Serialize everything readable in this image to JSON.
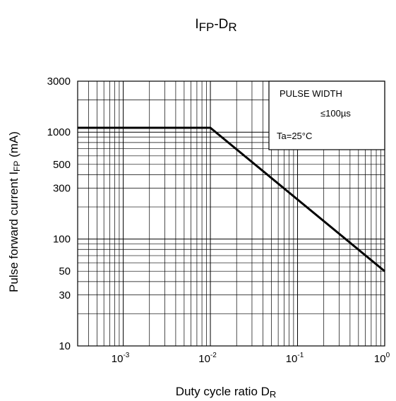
{
  "chart_data": {
    "type": "line",
    "title_parts": [
      {
        "text": "I",
        "sub": false
      },
      {
        "text": "FP",
        "sub": true
      },
      {
        "text": "-D",
        "sub": false
      },
      {
        "text": "R",
        "sub": true
      }
    ],
    "xlabel": {
      "main": "Duty cycle ratio   D",
      "sub": "R"
    },
    "ylabel": {
      "main": "Pulse forward current   I",
      "sub": "FP",
      "unit": "(mA)"
    },
    "x_scale": "log",
    "y_scale": "log",
    "xlim": [
      0.0003,
      1
    ],
    "ylim": [
      10,
      3000
    ],
    "x_ticks": [
      {
        "value": 0.001,
        "base": "10",
        "exp": "-3"
      },
      {
        "value": 0.01,
        "base": "10",
        "exp": "-2"
      },
      {
        "value": 0.1,
        "base": "10",
        "exp": "-1"
      },
      {
        "value": 1,
        "base": "10",
        "exp": "0"
      }
    ],
    "y_ticks": [
      {
        "value": 3000,
        "label": "3000"
      },
      {
        "value": 1000,
        "label": "1000"
      },
      {
        "value": 500,
        "label": "500"
      },
      {
        "value": 300,
        "label": "300"
      },
      {
        "value": 100,
        "label": "100"
      },
      {
        "value": 50,
        "label": "50"
      },
      {
        "value": 30,
        "label": "30"
      },
      {
        "value": 10,
        "label": "10"
      }
    ],
    "grid": true,
    "series": [
      {
        "x": [
          0.0003,
          0.01,
          1
        ],
        "y": [
          1100,
          1100,
          50
        ]
      }
    ],
    "annotation_box": {
      "lines": [
        "PULSE WIDTH",
        "≤100µs",
        "Ta=25°C"
      ],
      "placement": "top-right"
    },
    "colors": {
      "line": "#000000",
      "grid": "#000000",
      "background": "#ffffff"
    }
  }
}
